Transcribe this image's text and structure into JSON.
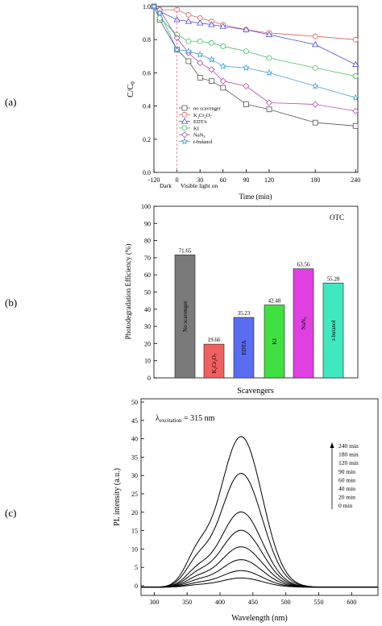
{
  "panel_labels": [
    "(a)",
    "(b)",
    "(c)"
  ],
  "chart_data": [
    {
      "type": "line",
      "ylabel_main": "C/C",
      "ylabel_sub": "0",
      "xlabel": "Time (min)",
      "x_ticks": [
        "-120",
        "0",
        "30",
        "60",
        "90",
        "120",
        "180",
        "240"
      ],
      "y_ticks": [
        "0.0",
        "0.2",
        "0.4",
        "0.6",
        "0.8",
        "1.0"
      ],
      "ylim": [
        0,
        1.0
      ],
      "dark_label": "Dark",
      "light_label": "Visible light on",
      "x": [
        -120,
        -90,
        0,
        15,
        30,
        45,
        60,
        75,
        90,
        120,
        180,
        240
      ],
      "series": [
        {
          "name": "no scavenger",
          "marker": "square",
          "color": "#555555",
          "values": [
            1.0,
            0.92,
            0.74,
            0.67,
            0.57,
            0.55,
            0.51,
            null,
            0.41,
            0.38,
            0.3,
            0.28
          ]
        },
        {
          "name": "K2Cr2O7",
          "marker": "circle",
          "color": "#e06060",
          "values": [
            1.0,
            0.98,
            0.98,
            0.95,
            0.93,
            0.91,
            0.89,
            null,
            0.86,
            0.84,
            0.82,
            0.8
          ]
        },
        {
          "name": "EDTA",
          "marker": "triangle",
          "color": "#4a4ae0",
          "values": [
            1.0,
            0.97,
            0.92,
            0.91,
            0.9,
            0.89,
            0.88,
            null,
            0.86,
            0.83,
            0.77,
            0.65
          ]
        },
        {
          "name": "KI",
          "marker": "circle",
          "color": "#40c060",
          "values": [
            1.0,
            0.93,
            0.83,
            0.79,
            0.79,
            0.78,
            0.76,
            null,
            0.73,
            0.69,
            0.63,
            0.58
          ]
        },
        {
          "name": "NaN3",
          "marker": "diamond",
          "color": "#b050b0",
          "values": [
            1.0,
            0.98,
            0.81,
            0.72,
            0.66,
            0.62,
            0.55,
            null,
            0.52,
            0.42,
            0.41,
            0.37
          ]
        },
        {
          "name": "t-butanol",
          "marker": "star",
          "color": "#40a0d0",
          "values": [
            1.0,
            0.96,
            0.74,
            0.73,
            0.71,
            0.68,
            0.64,
            null,
            0.63,
            0.6,
            0.52,
            0.45
          ]
        }
      ],
      "legend_position": "bottom-left"
    },
    {
      "type": "bar",
      "ylabel": "Photodegradation Efficiency (%)",
      "xlabel": "Scavengers",
      "annotation": "OTC",
      "ylim": [
        0,
        100
      ],
      "y_ticks": [
        "0",
        "10",
        "20",
        "30",
        "40",
        "50",
        "60",
        "70",
        "80",
        "90",
        "100"
      ],
      "categories": [
        "No scavenger",
        "K2Cr2O7",
        "EDTA",
        "KI",
        "NaN3",
        "t-butanol"
      ],
      "values": [
        71.65,
        19.66,
        35.23,
        42.48,
        63.56,
        55.28
      ],
      "value_labels": [
        "71.65",
        "19.66",
        "35.23",
        "42.48",
        "63.56",
        "55.28"
      ],
      "colors": [
        "#7a7a7a",
        "#f06060",
        "#5a6cf0",
        "#40e040",
        "#e040e0",
        "#40e8c0"
      ]
    },
    {
      "type": "line",
      "ylabel": "PL intensity (a.u.)",
      "xlabel": "Wavelength (nm)",
      "x_ticks": [
        "300",
        "350",
        "400",
        "450",
        "500",
        "550",
        "600"
      ],
      "y_ticks": [
        "0",
        "5",
        "10",
        "15",
        "20",
        "25",
        "30",
        "35",
        "40",
        "45",
        "50"
      ],
      "xlim": [
        280,
        640
      ],
      "ylim": [
        -2,
        50
      ],
      "excitation_symbol": "λ",
      "excitation_sub": "excitation",
      "excitation_value": " = 315 nm",
      "legend": [
        "240 min",
        "180 min",
        "120 min",
        "90 min",
        "60 min",
        "40 min",
        "20 min",
        "0 min"
      ],
      "peak_wavelength": 432,
      "peak_intensities": [
        41,
        31,
        20.5,
        15.5,
        11,
        7.5,
        4.5,
        2.5
      ]
    }
  ]
}
